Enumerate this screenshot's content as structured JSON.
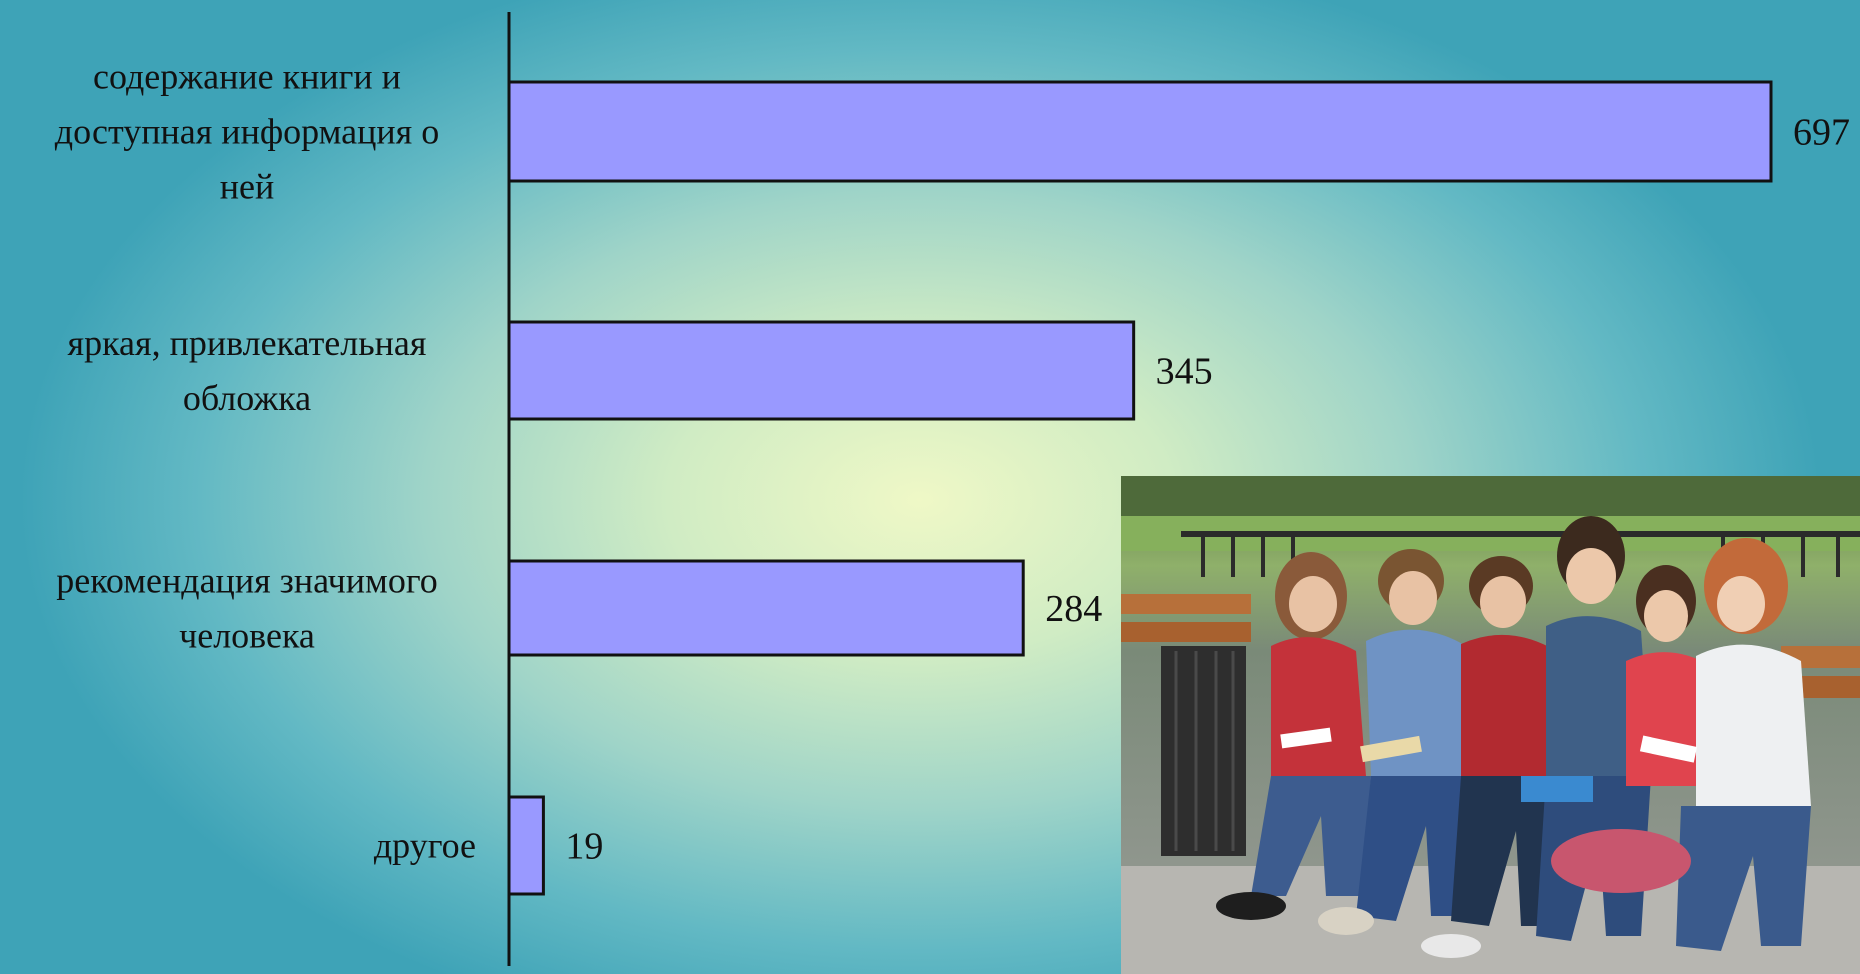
{
  "chart_data": {
    "type": "bar",
    "orientation": "horizontal",
    "categories": [
      "содержание книги и доступная информация о ней",
      "яркая, привлекательная обложка",
      "рекомендация значимого человека",
      "другое"
    ],
    "category_lines": [
      [
        "содержание книги и",
        "доступная информация о",
        "ней"
      ],
      [
        "яркая, привлекательная",
        "обложка"
      ],
      [
        "рекомендация значимого",
        "человека"
      ],
      [
        "другое"
      ]
    ],
    "values": [
      697,
      345,
      284,
      19
    ],
    "value_labels": [
      "697",
      "345",
      "284",
      "19"
    ],
    "xlim": [
      0,
      697
    ],
    "grid": false,
    "legend": "none",
    "bar_color": "#9999ff",
    "bar_edge_color": "#111111"
  },
  "photo": {
    "subject": "children-reading-on-bench-photo"
  }
}
